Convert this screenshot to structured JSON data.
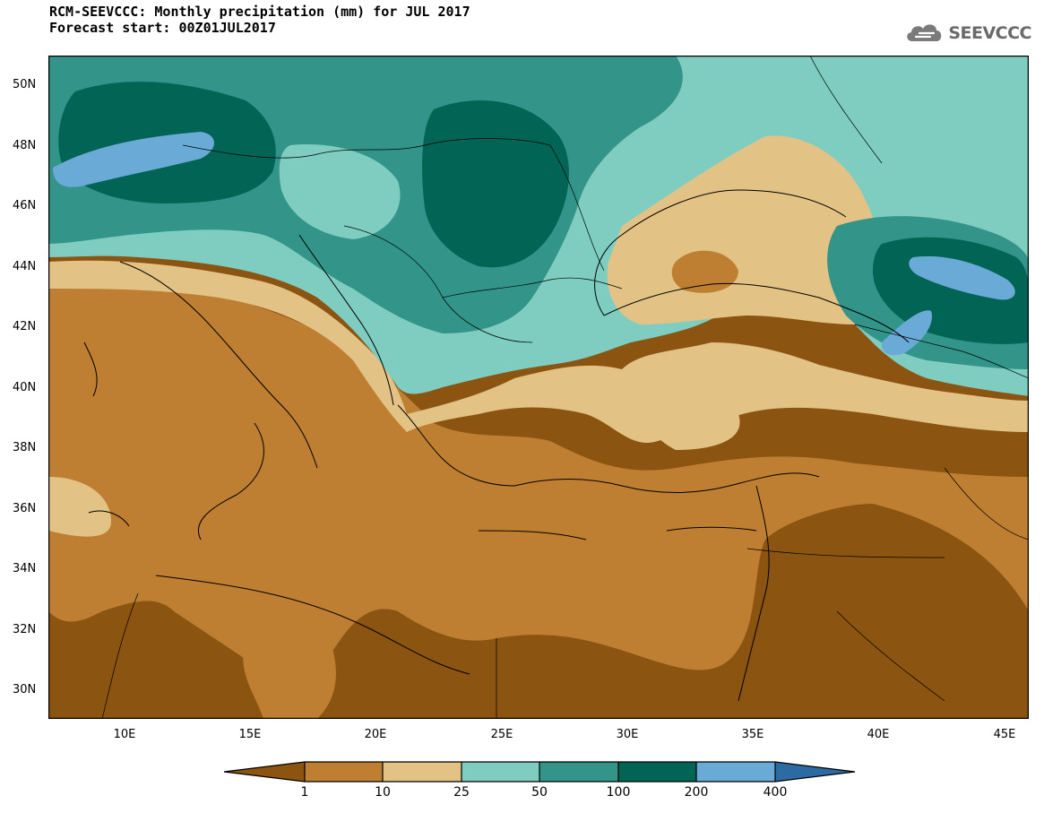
{
  "header": {
    "title_line1": "RCM-SEEVCCC: Monthly precipitation (mm) for JUL 2017",
    "title_line2": "Forecast start: 00Z01JUL2017",
    "logo_text": "SEEVCCC"
  },
  "map": {
    "lat_labels": [
      "50N",
      "48N",
      "46N",
      "44N",
      "42N",
      "40N",
      "38N",
      "36N",
      "34N",
      "32N",
      "30N"
    ],
    "lon_labels": [
      "10E",
      "15E",
      "20E",
      "25E",
      "30E",
      "35E",
      "40E",
      "45E"
    ],
    "lat_range": [
      29,
      51
    ],
    "lon_range": [
      7,
      46
    ],
    "variable": "Monthly precipitation (mm)"
  },
  "colorbar": {
    "levels": [
      "1",
      "10",
      "25",
      "50",
      "100",
      "200",
      "400"
    ],
    "colors": [
      "#8b5410",
      "#bf7f33",
      "#e2c285",
      "#7ecdc0",
      "#339489",
      "#016455",
      "#6aaad6",
      "#2c6aa4"
    ]
  }
}
